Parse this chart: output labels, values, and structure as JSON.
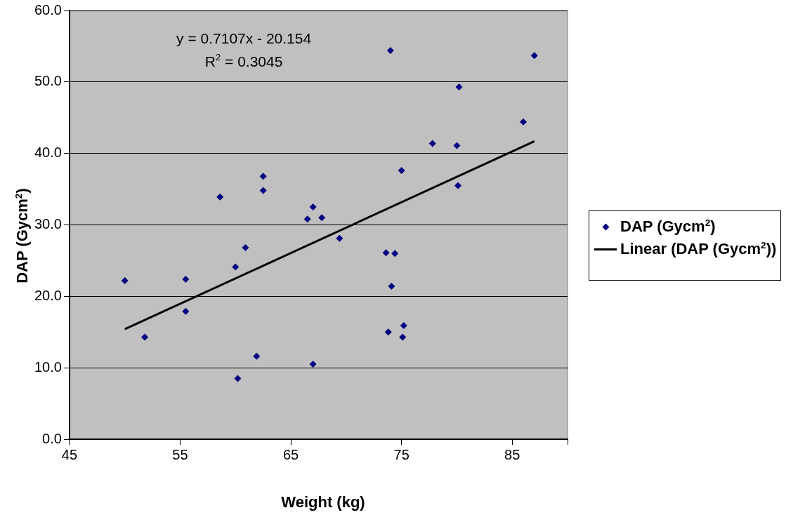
{
  "chart_data": {
    "type": "scatter",
    "xlabel": "Weight (kg)",
    "ylabel": "DAP (Gycm$^{2}$)",
    "xlim": [
      45,
      90
    ],
    "xticks": [
      45,
      55,
      65,
      75,
      85,
      {
        "value": 90,
        "label": null
      }
    ],
    "ylim": [
      0,
      60
    ],
    "yticks": [
      {
        "value": 0,
        "label": "0.0"
      },
      {
        "value": 10,
        "label": "10.0"
      },
      {
        "value": 20,
        "label": "20.0"
      },
      {
        "value": 30,
        "label": "30.0"
      },
      {
        "value": 40,
        "label": "40.0"
      },
      {
        "value": 50,
        "label": "50.0"
      },
      {
        "value": 60,
        "label": "60.0"
      }
    ],
    "grid": "y",
    "legend": "right",
    "annotations": [
      "y = 0.7107x - 20.154",
      "R$^{2}$ = 0.3045"
    ],
    "series": [
      {
        "name": "DAP (Gycm$^{2}$)",
        "marker": "diamond",
        "color": "#000080",
        "x": [
          58.6,
          62.5,
          62.5,
          67.0,
          66.5,
          67.8,
          74.0,
          87.0,
          80.2,
          86.0,
          77.8,
          80.0,
          75.0,
          80.1,
          69.4,
          73.6,
          74.4,
          74.1,
          75.2,
          73.8,
          75.1,
          67.0,
          50.0,
          51.8,
          55.5,
          55.5,
          60.0,
          60.9,
          61.9,
          60.2
        ],
        "values": [
          33.9,
          36.8,
          34.8,
          32.5,
          30.8,
          31.0,
          54.4,
          53.7,
          49.3,
          44.4,
          41.4,
          41.1,
          37.6,
          35.5,
          28.1,
          26.1,
          26.0,
          21.4,
          15.9,
          15.0,
          14.3,
          10.5,
          22.2,
          14.3,
          22.4,
          17.9,
          24.1,
          26.8,
          11.6,
          8.5
        ]
      },
      {
        "name": "Linear (DAP (Gycm$^{2}$))",
        "type": "line",
        "marker": "none",
        "color": "#000000",
        "x": [
          50,
          87
        ],
        "values": [
          15.4,
          41.7
        ]
      }
    ]
  }
}
